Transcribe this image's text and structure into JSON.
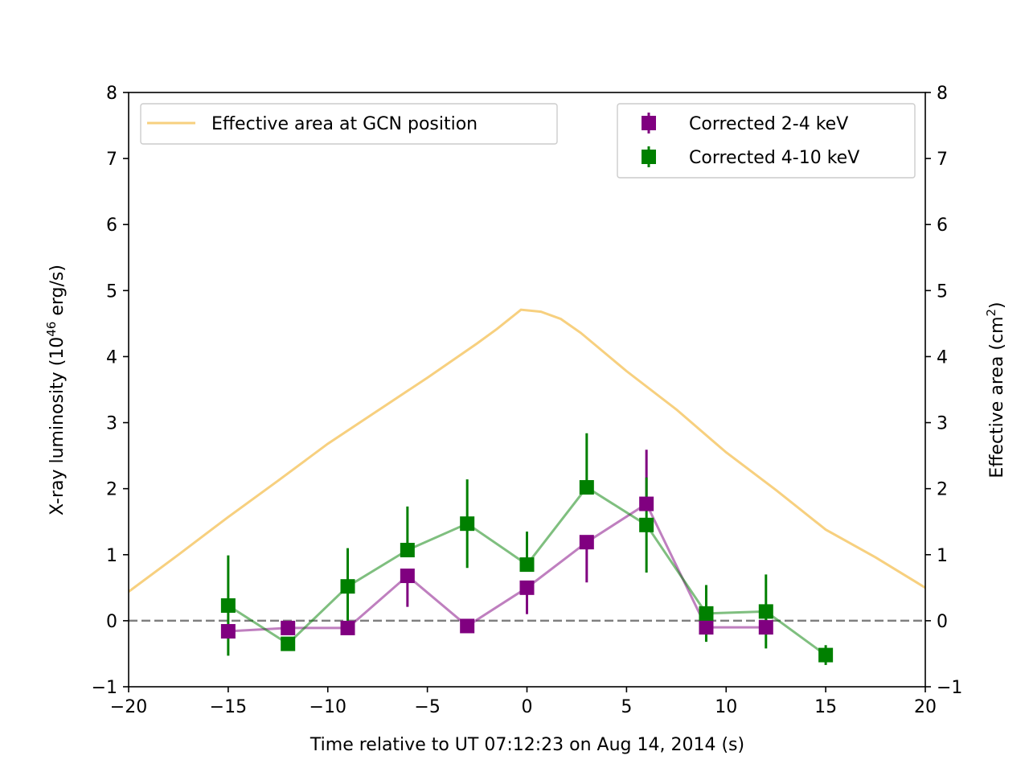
{
  "chart_data": {
    "type": "scatter",
    "xlabel": "Time relative to UT 07:12:23 on Aug 14, 2014 (s)",
    "ylabel_left": {
      "pre": "X-ray luminosity (10",
      "sup": "46",
      "post": " erg/s)"
    },
    "ylabel_right": {
      "pre": "Effective area (cm",
      "sup": "2",
      "post": ")"
    },
    "xlim": [
      -20,
      20
    ],
    "ylim": [
      -1,
      8
    ],
    "x_ticks": [
      -20,
      -15,
      -10,
      -5,
      0,
      5,
      10,
      15,
      20
    ],
    "x_tick_labels": [
      "−20",
      "−15",
      "−10",
      "−5",
      "0",
      "5",
      "10",
      "15",
      "20"
    ],
    "y_ticks": [
      -1,
      0,
      1,
      2,
      3,
      4,
      5,
      6,
      7,
      8
    ],
    "y_tick_labels": [
      "−1",
      "0",
      "1",
      "2",
      "3",
      "4",
      "5",
      "6",
      "7",
      "8"
    ],
    "zero_line": {
      "y": 0,
      "color": "#808080"
    },
    "effective_area": {
      "name": "Effective area at GCN position",
      "color": "#f7d07f",
      "x": [
        -20,
        -17.5,
        -15,
        -12.5,
        -10,
        -7.5,
        -5,
        -2.5,
        -1.5,
        -0.3,
        0.7,
        1.7,
        2.7,
        5,
        7.5,
        10,
        12.5,
        15,
        17.5,
        20
      ],
      "y": [
        0.44,
        1.0,
        1.57,
        2.12,
        2.68,
        3.18,
        3.68,
        4.2,
        4.42,
        4.71,
        4.68,
        4.57,
        4.36,
        3.78,
        3.2,
        2.55,
        1.98,
        1.38,
        0.96,
        0.5
      ]
    },
    "series": [
      {
        "name": "Corrected 2-4 keV",
        "color": "#800080",
        "x": [
          -15,
          -12,
          -9,
          -6,
          -3,
          0,
          3,
          6,
          9,
          12
        ],
        "y": [
          -0.16,
          -0.11,
          -0.11,
          0.68,
          -0.08,
          0.5,
          1.19,
          1.77,
          -0.1,
          -0.1
        ],
        "yerr_low": [
          0.0,
          0.0,
          0.0,
          0.47,
          0.0,
          0.4,
          0.61,
          0.0,
          0.0,
          0.0
        ],
        "yerr_high": [
          0.0,
          0.0,
          0.0,
          0.0,
          0.0,
          0.0,
          0.0,
          0.82,
          0.0,
          0.0
        ]
      },
      {
        "name": "Corrected 4-10 keV",
        "color": "#008000",
        "x": [
          -15,
          -12,
          -9,
          -6,
          -3,
          0,
          3,
          6,
          9,
          12,
          15
        ],
        "y": [
          0.23,
          -0.35,
          0.52,
          1.07,
          1.47,
          0.85,
          2.02,
          1.45,
          0.11,
          0.14,
          -0.52
        ],
        "yerr_low": [
          0.76,
          0.0,
          0.52,
          0.0,
          0.67,
          0.0,
          0.0,
          0.72,
          0.43,
          0.56,
          0.15
        ],
        "yerr_high": [
          0.76,
          0.0,
          0.58,
          0.66,
          0.67,
          0.5,
          0.82,
          0.72,
          0.43,
          0.56,
          0.15
        ]
      }
    ],
    "legend_left_position": "top-left",
    "legend_right_position": "top-right",
    "grid": false
  }
}
